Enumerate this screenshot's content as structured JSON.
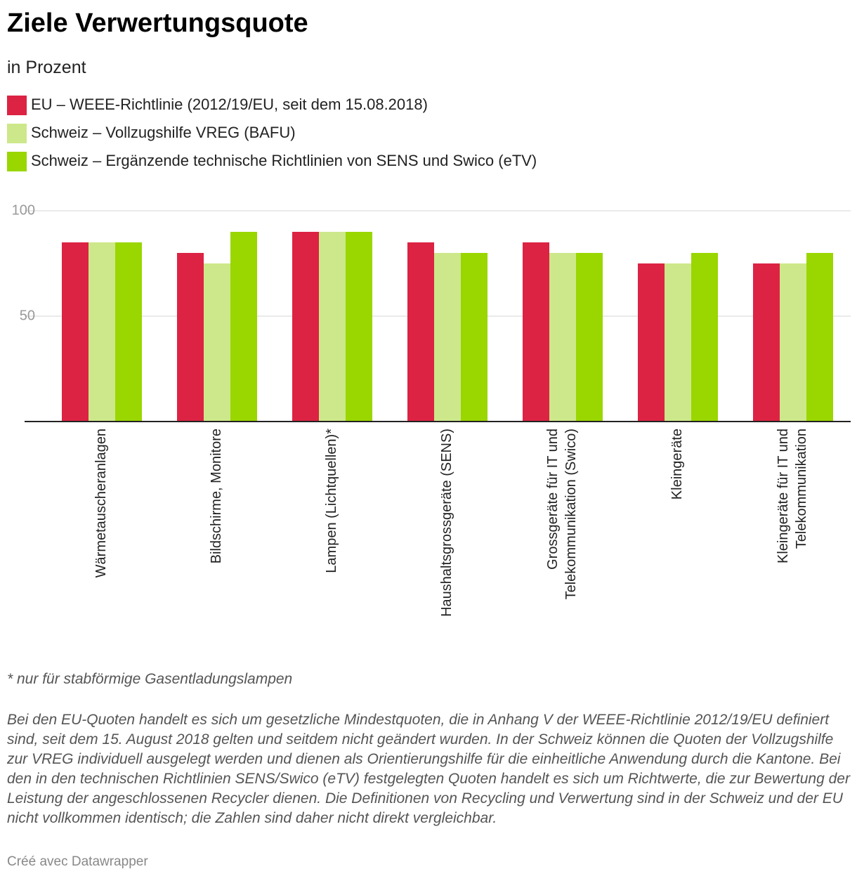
{
  "chart_data": {
    "type": "bar",
    "title": "Ziele Verwertungsquote",
    "subtitle": "in Prozent",
    "categories": [
      "Wärmetauscheranlagen",
      "Bildschirme, Monitore",
      "Lampen (Lichtquellen)*",
      "Haushaltsgrossgeräte (SENS)",
      "Grossgeräte für IT und Telekommunikation (Swico)",
      "Kleingeräte",
      "Kleingeräte für IT und Telekommunikation"
    ],
    "series": [
      {
        "name": "EU – WEEE-Richtlinie (2012/19/EU, seit dem 15.08.2018)",
        "color": "#dc2343",
        "values": [
          85,
          80,
          90,
          85,
          85,
          75,
          75
        ]
      },
      {
        "name": "Schweiz – Vollzugshilfe VREG (BAFU)",
        "color": "#cde88a",
        "values": [
          85,
          75,
          90,
          80,
          80,
          75,
          75
        ]
      },
      {
        "name": "Schweiz – Ergänzende technische Richtlinien von SENS und Swico (eTV)",
        "color": "#9ad600",
        "values": [
          85,
          90,
          90,
          80,
          80,
          80,
          80
        ]
      }
    ],
    "ylim": [
      0,
      100
    ],
    "yticks": [
      50,
      100
    ],
    "grid": true,
    "footnote": "* nur für stabförmige Gasentladungslampen",
    "description": "Bei den EU-Quoten handelt es sich um gesetzliche Mindestquoten, die in Anhang V der WEEE-Richtlinie 2012/19/EU definiert sind, seit dem 15. August 2018 gelten und seitdem nicht geändert wurden. In der Schweiz können die Quoten der Vollzugshilfe zur VREG individuell ausgelegt werden und dienen als Orientierungshilfe für die einheitliche Anwendung durch die Kantone. Bei den in den technischen Richtlinien SENS/Swico (eTV) festgelegten Quoten handelt es sich um Richtwerte, die zur Bewertung der Leistung der angeschlossenen Recycler dienen. Die Definitionen von Recycling und Verwertung sind in der Schweiz und der EU nicht vollkommen identisch; die Zahlen sind daher nicht direkt vergleichbar.",
    "credit": "Créé avec Datawrapper"
  }
}
